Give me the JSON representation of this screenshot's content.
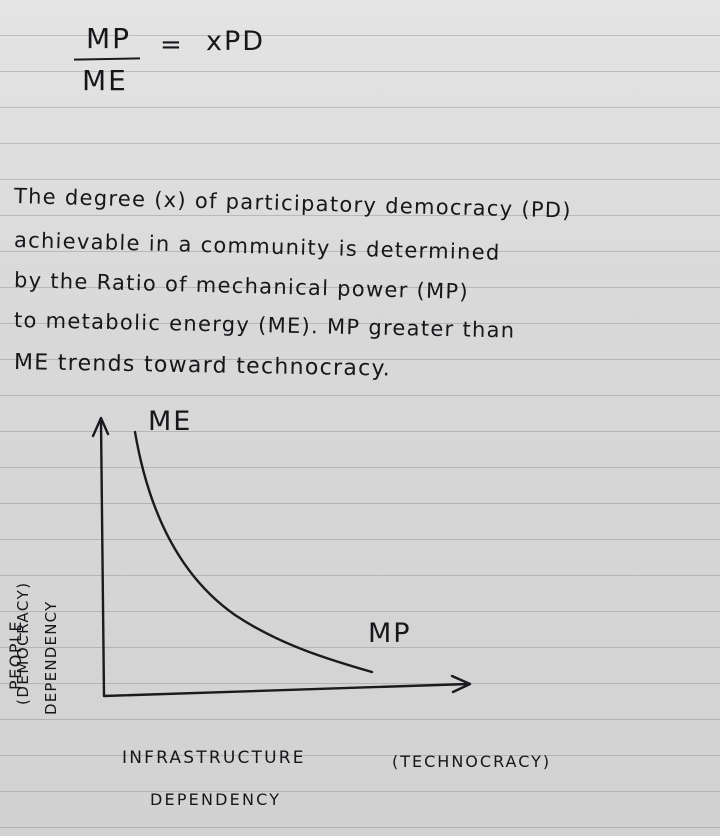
{
  "formula": {
    "numerator": "MP",
    "denominator": "ME",
    "equals": "=",
    "rhs": "xPD"
  },
  "paragraph": {
    "lines": [
      "The degree (x) of participatory democracy (PD)",
      "achievable in a community is determined",
      "by the Ratio of mechanical power (MP)",
      "to metabolic energy (ME).  MP greater than",
      "ME trends toward technocracy."
    ]
  },
  "graph": {
    "curve_labels": {
      "start": "ME",
      "end": "MP"
    },
    "y_axis_label": {
      "line1": "(DEMOCRACY)",
      "line2": "PEOPLE",
      "line3": "DEPENDENCY"
    },
    "x_axis_label": {
      "line1": "INFRASTRUCTURE",
      "line2": "(TECHNOCRACY)",
      "line3": "DEPENDENCY"
    },
    "colors": {
      "ink": "#1b1b1f",
      "paper": "#dcdcdc",
      "rule_lines": "#9a9a9a"
    }
  }
}
